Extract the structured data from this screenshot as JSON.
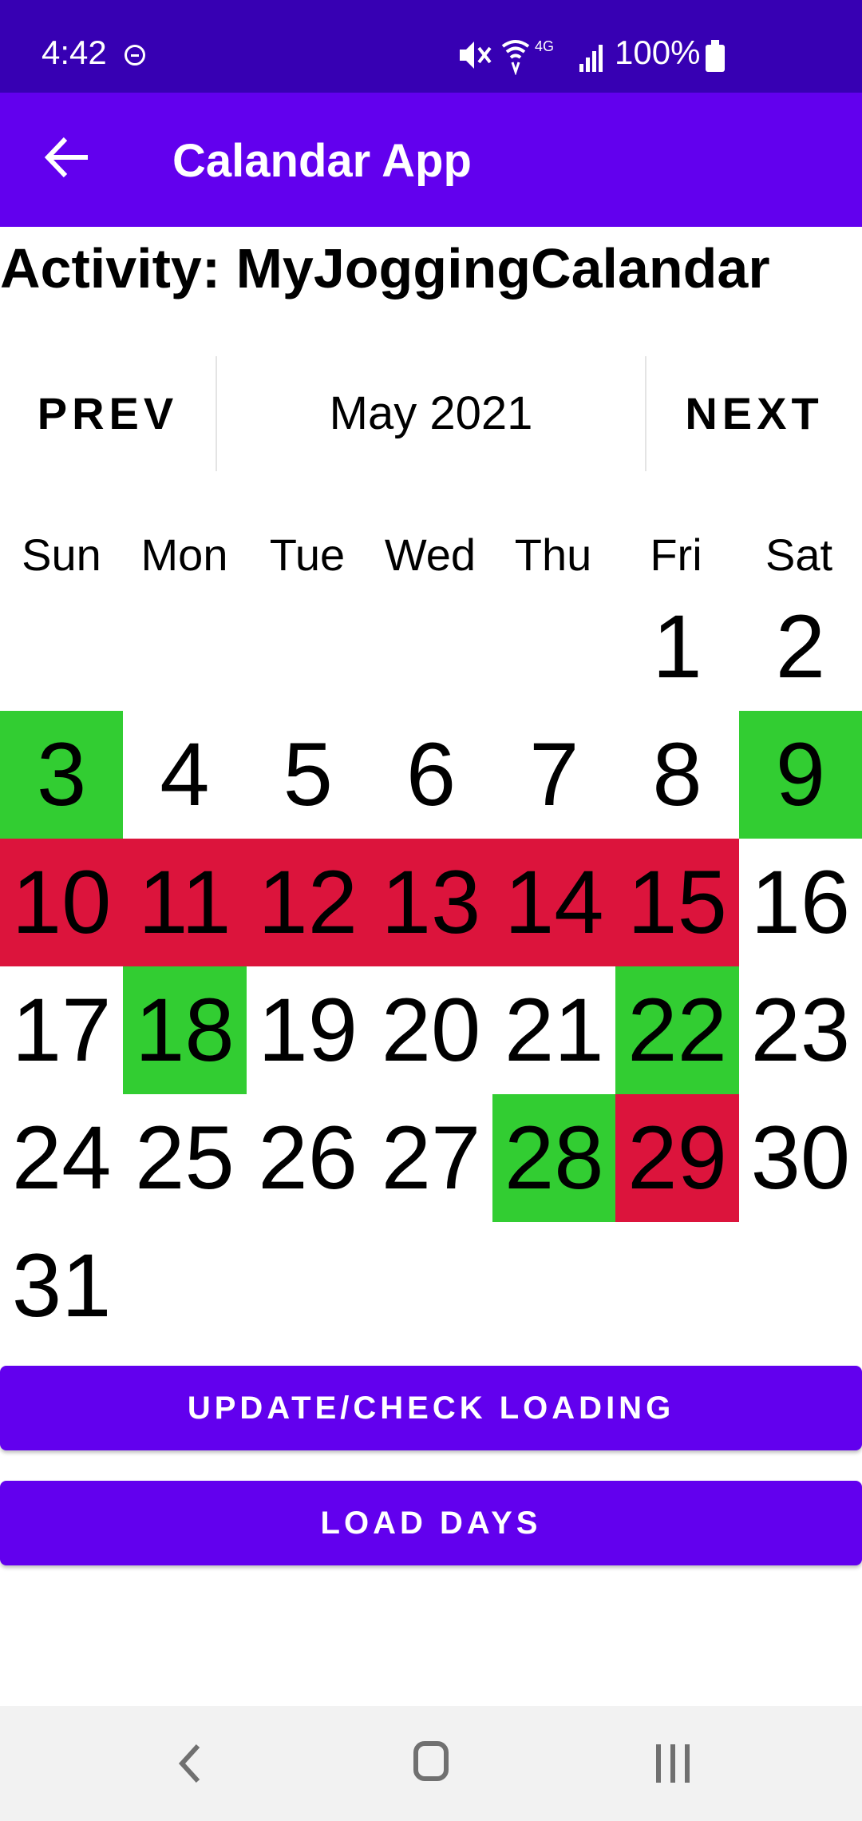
{
  "status_bar": {
    "time": "4:42",
    "network": "4G",
    "battery": "100%",
    "icons": [
      "dnd-icon",
      "mute-icon",
      "wifi-icon",
      "signal-icon",
      "battery-icon"
    ]
  },
  "app_bar": {
    "title": "Calandar App",
    "back_icon": "arrow-left-icon"
  },
  "activity_title": "Activity: MyJoggingCalandar",
  "month_nav": {
    "prev_label": "PREV",
    "month_label": "May 2021",
    "next_label": "NEXT"
  },
  "weekdays": [
    "Sun",
    "Mon",
    "Tue",
    "Wed",
    "Thu",
    "Fri",
    "Sat"
  ],
  "calendar": {
    "first_weekday": 5,
    "days_in_month": 31,
    "colors": {
      "green": "#32CD32",
      "red": "#DC143C"
    },
    "green_days": [
      3,
      9,
      18,
      22,
      28
    ],
    "red_days": [
      10,
      11,
      12,
      13,
      14,
      15,
      29
    ]
  },
  "buttons": {
    "update_label": "UPDATE/CHECK LOADING",
    "load_label": "LOAD DAYS"
  },
  "nav_bar": {
    "icons": [
      "nav-back-icon",
      "nav-home-icon",
      "nav-recents-icon"
    ]
  },
  "colors": {
    "status_bar": "#3700B3",
    "app_bar": "#6200EE",
    "button": "#6200EE"
  }
}
